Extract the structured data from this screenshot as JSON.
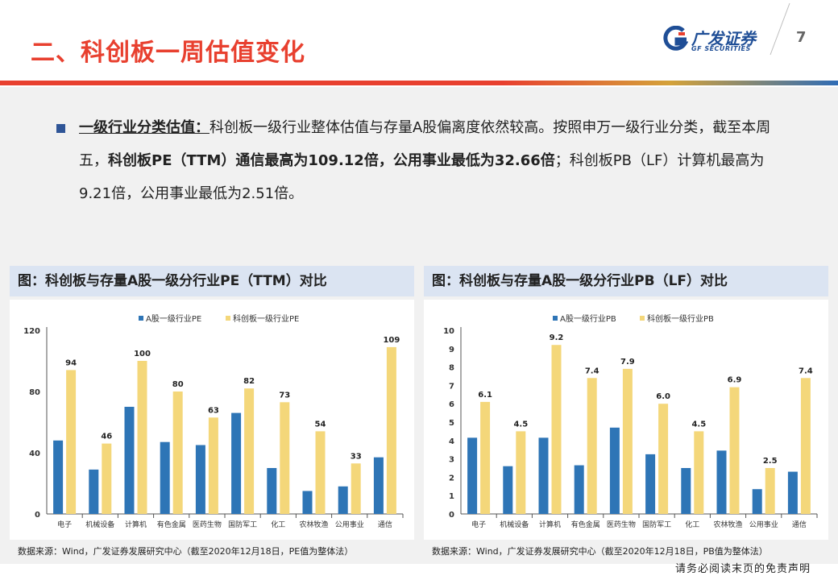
{
  "header": {
    "title": "二、科创板一周估值变化",
    "page_number": "7",
    "logo_cn": "广发证券",
    "logo_en": "GF SECURITIES"
  },
  "body": {
    "p_lead": "一级行业分类估值：",
    "p_text1": "科创板一级行业整体估值与存量A股偏离度依然较高。按照申万一级行业分类，截至本周五，",
    "p_bold": "科创板PE（TTM）通信最高为109.12倍，公用事业最低为32.66倍",
    "p_text2": "；科创板PB（LF）计算机最高为9.21倍，公用事业最低为2.51倍。"
  },
  "footer": {
    "disclaimer": "请务必阅读末页的免责声明"
  },
  "colors": {
    "title_red": "#e8402f",
    "series_blue": "#2e75b6",
    "series_gold": "#f4d77a",
    "panel_bg": "#dbe4f2"
  },
  "chart_data": [
    {
      "type": "bar",
      "title": "图：科创板与存量A股一级分行业PE（TTM）对比",
      "categories": [
        "电子",
        "机械设备",
        "计算机",
        "有色金属",
        "医药生物",
        "国防军工",
        "化工",
        "农林牧渔",
        "公用事业",
        "通信"
      ],
      "series": [
        {
          "name": "A股一级行业PE",
          "values": [
            48,
            29,
            70,
            47,
            45,
            66,
            30,
            15,
            18,
            37
          ]
        },
        {
          "name": "科创板一级行业PE",
          "values": [
            94,
            46,
            100,
            80,
            63,
            82,
            73,
            54,
            33,
            109
          ],
          "labels": [
            "94",
            "46",
            "100",
            "80",
            "63",
            "82",
            "73",
            "54",
            "33",
            "109"
          ]
        }
      ],
      "ylim": [
        0,
        120
      ],
      "yticks": [
        "0",
        "40",
        "80",
        "120"
      ],
      "ytick_values": [
        0,
        40,
        80,
        120
      ],
      "source": "数据来源：Wind，广发证券发展研究中心（截至2020年12月18日，PE值为整体法）",
      "legend": "top"
    },
    {
      "type": "bar",
      "title": "图：科创板与存量A股一级分行业PB（LF）对比",
      "categories": [
        "电子",
        "机械设备",
        "计算机",
        "有色金属",
        "医药生物",
        "国防军工",
        "化工",
        "农林牧渔",
        "公用事业",
        "通信"
      ],
      "series": [
        {
          "name": "A股一级行业PB",
          "values": [
            4.15,
            2.6,
            4.15,
            2.65,
            4.7,
            3.25,
            2.5,
            3.45,
            1.35,
            2.3
          ]
        },
        {
          "name": "科创板一级行业PB",
          "values": [
            6.1,
            4.5,
            9.2,
            7.4,
            7.9,
            6.0,
            4.5,
            6.9,
            2.5,
            7.4
          ],
          "labels": [
            "6.1",
            "4.5",
            "9.2",
            "7.4",
            "7.9",
            "6.0",
            "4.5",
            "6.9",
            "2.5",
            "7.4"
          ]
        }
      ],
      "ylim": [
        0,
        10
      ],
      "yticks": [
        "0",
        "1",
        "2",
        "3",
        "4",
        "5",
        "6",
        "7",
        "8",
        "9",
        "10"
      ],
      "ytick_values": [
        0,
        1,
        2,
        3,
        4,
        5,
        6,
        7,
        8,
        9,
        10
      ],
      "source": "数据来源：Wind，广发证券发展研究中心（截至2020年12月18日，PB值为整体法）",
      "legend": "top"
    }
  ]
}
